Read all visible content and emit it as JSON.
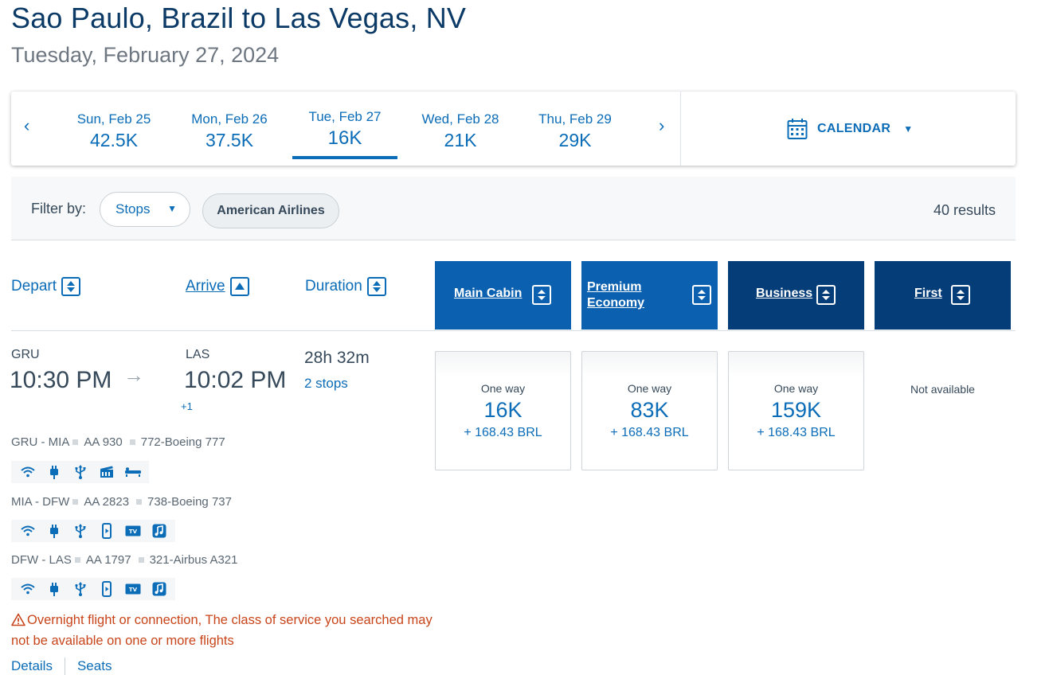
{
  "header": {
    "route": "Sao Paulo, Brazil to Las Vegas, NV",
    "date": "Tuesday, February 27, 2024"
  },
  "date_strip": {
    "prev_icon": "chevron-left-icon",
    "next_icon": "chevron-right-icon",
    "prev_glyph": "‹",
    "next_glyph": "›",
    "days": [
      {
        "label": "Sun, Feb 25",
        "price": "42.5K"
      },
      {
        "label": "Mon, Feb 26",
        "price": "37.5K"
      },
      {
        "label": "Tue, Feb 27",
        "price": "16K",
        "selected": true
      },
      {
        "label": "Wed, Feb 28",
        "price": "21K"
      },
      {
        "label": "Thu, Feb 29",
        "price": "29K"
      }
    ],
    "calendar_label": "CALENDAR",
    "accent": "#0b6cb7"
  },
  "filters": {
    "label": "Filter by:",
    "stops_label": "Stops",
    "airline_chip": "American Airlines",
    "results": "40 results"
  },
  "columns": {
    "depart": "Depart",
    "arrive": "Arrive",
    "duration": "Duration",
    "cabins": [
      {
        "label": "Main Cabin",
        "color": "#0b61b0"
      },
      {
        "label": "Premium Economy",
        "color": "#0b61b0"
      },
      {
        "label": "Business",
        "color": "#053d78"
      },
      {
        "label": "First",
        "color": "#053d78"
      }
    ]
  },
  "flight": {
    "origin": "GRU",
    "destination": "LAS",
    "depart_time": "10:30 PM",
    "arrive_time": "10:02 PM",
    "day_offset": "+1",
    "duration": "28h 32m",
    "stops": "2 stops",
    "segments": [
      {
        "route": "GRU - MIA",
        "flight": "AA 930",
        "aircraft": "772-Boeing 777",
        "amenities": [
          "wifi-icon",
          "power-outlet-icon",
          "usb-icon",
          "entertainment-icon",
          "lie-flat-seat-icon"
        ]
      },
      {
        "route": "MIA - DFW",
        "flight": "AA 2823",
        "aircraft": "738-Boeing 737",
        "amenities": [
          "wifi-icon",
          "power-outlet-icon",
          "usb-icon",
          "device-entertainment-icon",
          "tv-icon",
          "music-icon"
        ]
      },
      {
        "route": "DFW - LAS",
        "flight": "AA 1797",
        "aircraft": "321-Airbus A321",
        "amenities": [
          "wifi-icon",
          "power-outlet-icon",
          "usb-icon",
          "device-entertainment-icon",
          "tv-icon",
          "music-icon"
        ]
      }
    ],
    "tv_text": "TV",
    "warning": "Overnight flight or connection, The class of service you searched may not be available on one or more flights",
    "details_link": "Details",
    "seats_link": "Seats",
    "prices": [
      {
        "label": "One way",
        "price": "16K",
        "fees": "+ 168.43 BRL"
      },
      {
        "label": "One way",
        "price": "83K",
        "fees": "+ 168.43 BRL"
      },
      {
        "label": "One way",
        "price": "159K",
        "fees": "+ 168.43 BRL"
      }
    ],
    "first_unavailable": "Not available",
    "warning_color": "#c8451b"
  }
}
